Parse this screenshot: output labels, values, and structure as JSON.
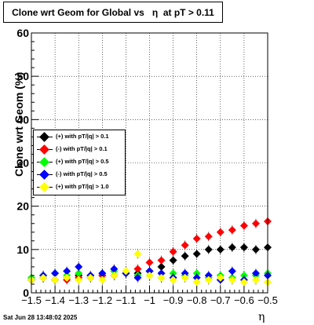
{
  "title": "Clone wrt Geom for Global vs   η  at pT > 0.11",
  "stamp": "Sat Jun 28 13:48:02 2025",
  "chart_data": {
    "type": "scatter",
    "title": "Clone wrt Geom for Global vs   η  at pT > 0.11",
    "xlabel": "η",
    "ylabel": "Clone wrt Geom (%)",
    "xlim": [
      -1.5,
      -0.5
    ],
    "ylim": [
      0,
      60
    ],
    "xticks": [
      "−1.5",
      "−1.4",
      "−1.3",
      "−1.2",
      "−1.1",
      "−1",
      "−0.9",
      "−0.8",
      "−0.7",
      "−0.6",
      "−0.5"
    ],
    "yticks": [
      "0",
      "10",
      "20",
      "30",
      "40",
      "50",
      "60"
    ],
    "grid": true,
    "legend_position": "left",
    "series": [
      {
        "name": "(+) with pT/|q| > 0.1",
        "color": "#000000",
        "x": [
          -1.5,
          -1.45,
          -1.4,
          -1.35,
          -1.3,
          -1.25,
          -1.2,
          -1.15,
          -1.1,
          -1.05,
          -1.0,
          -0.95,
          -0.9,
          -0.85,
          -0.8,
          -0.75,
          -0.7,
          -0.65,
          -0.6,
          -0.55,
          -0.5
        ],
        "y": [
          3.0,
          3.5,
          3.0,
          3.5,
          4.0,
          3.5,
          4.0,
          4.0,
          4.5,
          4.5,
          5.0,
          6.0,
          7.5,
          8.5,
          9.0,
          10.0,
          10.0,
          10.5,
          10.5,
          10.0,
          10.5
        ]
      },
      {
        "name": "(-) with pT/|q| > 0.1",
        "color": "#ff0000",
        "x": [
          -1.5,
          -1.45,
          -1.4,
          -1.35,
          -1.3,
          -1.25,
          -1.2,
          -1.15,
          -1.1,
          -1.05,
          -1.0,
          -0.95,
          -0.9,
          -0.85,
          -0.8,
          -0.75,
          -0.7,
          -0.65,
          -0.6,
          -0.55,
          -0.5
        ],
        "y": [
          3.0,
          3.5,
          3.0,
          3.0,
          3.5,
          3.5,
          4.0,
          4.0,
          4.5,
          5.5,
          7.0,
          7.5,
          9.5,
          11.0,
          12.5,
          13.0,
          14.0,
          14.5,
          15.5,
          16.0,
          16.5
        ]
      },
      {
        "name": "(+) with pT/|q| > 0.5",
        "color": "#00ff00",
        "x": [
          -1.5,
          -1.45,
          -1.4,
          -1.35,
          -1.3,
          -1.25,
          -1.2,
          -1.15,
          -1.1,
          -1.05,
          -1.0,
          -0.95,
          -0.9,
          -0.85,
          -0.8,
          -0.75,
          -0.7,
          -0.65,
          -0.6,
          -0.55,
          -0.5
        ],
        "y": [
          3.5,
          4.0,
          4.5,
          4.0,
          4.5,
          4.0,
          4.5,
          5.0,
          4.5,
          4.0,
          4.0,
          3.5,
          4.5,
          4.0,
          4.5,
          3.5,
          4.0,
          3.5,
          4.0,
          4.0,
          4.5
        ]
      },
      {
        "name": "(-) with pT/|q| > 0.5",
        "color": "#0000ff",
        "x": [
          -1.5,
          -1.45,
          -1.4,
          -1.35,
          -1.3,
          -1.25,
          -1.2,
          -1.15,
          -1.1,
          -1.05,
          -1.0,
          -0.95,
          -0.9,
          -0.85,
          -0.8,
          -0.75,
          -0.7,
          -0.65,
          -0.6,
          -0.55,
          -0.5
        ],
        "y": [
          3.0,
          4.0,
          4.5,
          5.0,
          6.0,
          4.0,
          4.5,
          5.5,
          4.5,
          3.5,
          5.0,
          4.5,
          3.5,
          4.5,
          3.5,
          4.0,
          3.0,
          5.0,
          3.0,
          4.5,
          4.0
        ]
      },
      {
        "name": "(+) with pT/|q| > 1.0",
        "color": "#ffff00",
        "x": [
          -1.5,
          -1.45,
          -1.4,
          -1.35,
          -1.3,
          -1.25,
          -1.2,
          -1.15,
          -1.1,
          -1.05,
          -1.0,
          -0.95,
          -0.9,
          -0.85,
          -0.8,
          -0.75,
          -0.7,
          -0.65,
          -0.6,
          -0.55,
          -0.5
        ],
        "y": [
          3.0,
          3.5,
          3.0,
          3.5,
          3.0,
          3.5,
          3.0,
          4.0,
          5.0,
          9.0,
          4.0,
          3.5,
          3.0,
          3.5,
          2.5,
          3.0,
          3.5,
          3.0,
          2.5,
          3.0,
          2.5
        ]
      }
    ]
  }
}
